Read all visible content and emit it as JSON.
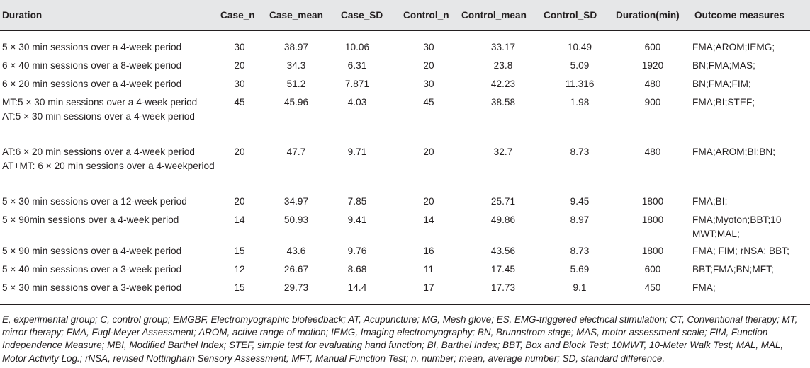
{
  "table": {
    "headers": [
      "Duration",
      "Case_n",
      "Case_mean",
      "Case_SD",
      "Control_n",
      "Control_mean",
      "Control_SD",
      "Duration(min)",
      "Outcome measures"
    ],
    "rows": [
      [
        "5 × 30 min sessions over a 4-week period",
        "30",
        "38.97",
        "10.06",
        "30",
        "33.17",
        "10.49",
        "600",
        "FMA;AROM;IEMG;"
      ],
      [
        "6 × 40 min sessions over a 8-week period",
        "20",
        "34.3",
        "6.31",
        "20",
        "23.8",
        "5.09",
        "1920",
        "BN;FMA;MAS;"
      ],
      [
        "6 × 20 min sessions over a 4-week period",
        "30",
        "51.2",
        "7.871",
        "30",
        "42.23",
        "11.316",
        "480",
        "BN;FMA;FIM;"
      ],
      [
        "MT:5 × 30 min sessions over a 4-week period AT:5 × 30 min sessions over a 4-week period",
        "45",
        "45.96",
        "4.03",
        "45",
        "38.58",
        "1.98",
        "900",
        "FMA;BI;STEF;"
      ],
      [
        "AT:6 × 20 min sessions over a 4-week period AT+MT: 6 × 20 min sessions over a 4-weekperiod",
        "20",
        "47.7",
        "9.71",
        "20",
        "32.7",
        "8.73",
        "480",
        "FMA;AROM;BI;BN;"
      ],
      [
        "5 × 30 min sessions over a 12-week period",
        "20",
        "34.97",
        "7.85",
        "20",
        "25.71",
        "9.45",
        "1800",
        "FMA;BI;"
      ],
      [
        "5 × 90min sessions over a 4-week period",
        "14",
        "50.93",
        "9.41",
        "14",
        "49.86",
        "8.97",
        "1800",
        "FMA;Myoton;BBT;10 MWT;MAL;"
      ],
      [
        "5 × 90 min sessions over a 4-week period",
        "15",
        "43.6",
        "9.76",
        "16",
        "43.56",
        "8.73",
        "1800",
        "FMA; FIM; rNSA; BBT;"
      ],
      [
        "5 × 40 min sessions over a 3-week period",
        "12",
        "26.67",
        "8.68",
        "11",
        "17.45",
        "5.69",
        "600",
        "BBT;FMA;BN;MFT;"
      ],
      [
        "5 × 30 min sessions over a 3-week period",
        "15",
        "29.73",
        "14.4",
        "17",
        "17.73",
        "9.1",
        "450",
        "FMA;"
      ]
    ]
  },
  "footnote": "E, experimental group; C, control group; EMGBF, Electromyographic biofeedback; AT, Acupuncture; MG, Mesh glove; ES, EMG-triggered electrical stimulation; CT, Conventional therapy; MT, mirror therapy; FMA, Fugl-Meyer Assessment; AROM, active range of motion; IEMG, Imaging electromyography; BN, Brunnstrom stage; MAS, motor assessment scale; FIM, Function Independence Measure; MBI, Modified Barthel Index; STEF, simple test for evaluating hand function; BI, Barthel Index; BBT, Box and Block Test; 10MWT, 10-Meter Walk Test; MAL, MAL, Motor Activity Log.; rNSA, revised Nottingham Sensory Assessment; MFT, Manual Function Test; n, number; mean, average number; SD, standard difference."
}
